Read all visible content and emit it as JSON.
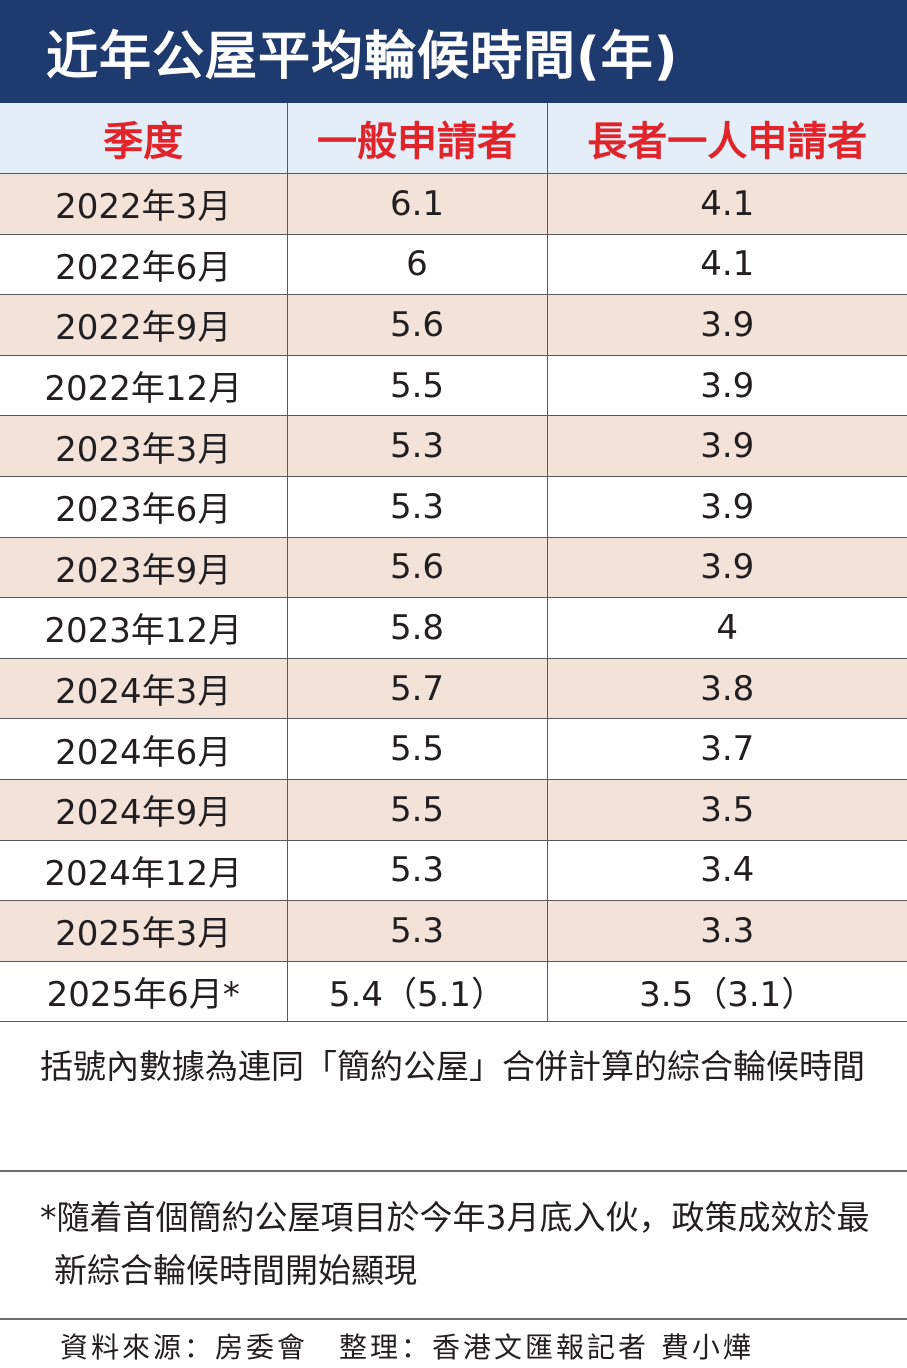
{
  "title": "近年公屋平均輪候時間(年)",
  "chart_data": {
    "type": "table",
    "title": "近年公屋平均輪候時間(年)",
    "columns": [
      "季度",
      "一般申請者",
      "長者一人申請者"
    ],
    "rows": [
      [
        "2022年3月",
        "6.1",
        "4.1"
      ],
      [
        "2022年6月",
        "6",
        "4.1"
      ],
      [
        "2022年9月",
        "5.6",
        "3.9"
      ],
      [
        "2022年12月",
        "5.5",
        "3.9"
      ],
      [
        "2023年3月",
        "5.3",
        "3.9"
      ],
      [
        "2023年6月",
        "5.3",
        "3.9"
      ],
      [
        "2023年9月",
        "5.6",
        "3.9"
      ],
      [
        "2023年12月",
        "5.8",
        "4"
      ],
      [
        "2024年3月",
        "5.7",
        "3.8"
      ],
      [
        "2024年6月",
        "5.5",
        "3.7"
      ],
      [
        "2024年9月",
        "5.5",
        "3.5"
      ],
      [
        "2024年12月",
        "5.3",
        "3.4"
      ],
      [
        "2025年3月",
        "5.3",
        "3.3"
      ],
      [
        "2025年6月*",
        "5.4（5.1）",
        "3.5（3.1）"
      ]
    ],
    "header_color": "#e0242a",
    "header_background": "#e3eef8",
    "shaded_row_color": "#f2e2d8",
    "title_background": "#1f3a6e"
  },
  "notes": {
    "bracket_note": "括號內數據為連同「簡約公屋」合併計算的綜合輪候時間",
    "asterisk_note": "*隨着首個簡約公屋項目於今年3月底入伙，政策成效於最新綜合輪候時間開始顯現"
  },
  "source_line": "資料來源：房委會　整理：香港文匯報記者 費小燁"
}
